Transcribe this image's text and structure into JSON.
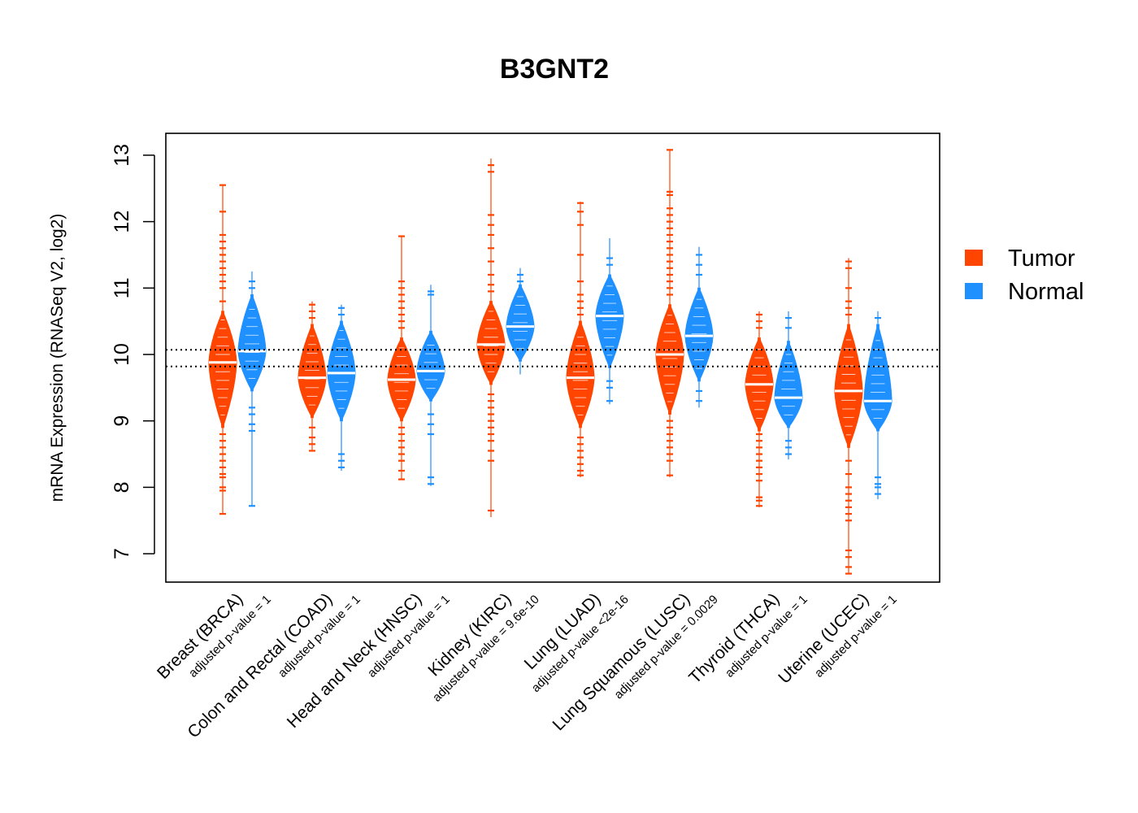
{
  "chart_data": {
    "type": "violin",
    "title": "B3GNT2",
    "ylabel": "mRNA Expression (RNASeq V2, log2)",
    "xlabel": "",
    "ylim": [
      6.6,
      13.3
    ],
    "yticks": [
      7,
      8,
      9,
      10,
      11,
      12,
      13
    ],
    "reference_lines": [
      9.82,
      10.07
    ],
    "legend": {
      "placement": "right",
      "entries": [
        {
          "label": "Tumor",
          "color": "#FF4500"
        },
        {
          "label": "Normal",
          "color": "#1E90FF"
        }
      ]
    },
    "colors": {
      "tumor": "#FF4500",
      "normal": "#1E90FF"
    },
    "categories": [
      {
        "name": "Breast (BRCA)",
        "pvalue": "adjusted p-value = 1",
        "tumor": {
          "median": 9.88,
          "min": 7.6,
          "max": 12.55,
          "core_lo": 8.9,
          "core_hi": 10.65,
          "q1": 9.55,
          "q3": 10.2,
          "outliers": [
            7.6,
            7.95,
            8.0,
            8.15,
            8.2,
            8.3,
            8.4,
            8.5,
            8.6,
            8.7,
            8.8,
            10.8,
            11.0,
            11.1,
            11.2,
            11.3,
            11.4,
            11.5,
            11.6,
            11.7,
            11.8,
            12.15,
            12.55
          ]
        },
        "normal": {
          "median": 10.05,
          "min": 7.72,
          "max": 11.25,
          "core_lo": 9.45,
          "core_hi": 10.9,
          "q1": 9.8,
          "q3": 10.4,
          "outliers": [
            7.72,
            8.85,
            8.95,
            9.1,
            9.2,
            11.0,
            11.1
          ]
        }
      },
      {
        "name": "Colon and Rectal (COAD)",
        "pvalue": "adjusted p-value = 1",
        "tumor": {
          "median": 9.65,
          "min": 8.55,
          "max": 10.8,
          "core_lo": 9.05,
          "core_hi": 10.45,
          "q1": 9.4,
          "q3": 9.95,
          "outliers": [
            8.55,
            8.65,
            8.75,
            8.9,
            10.55,
            10.65,
            10.75
          ]
        },
        "normal": {
          "median": 9.72,
          "min": 8.25,
          "max": 10.75,
          "core_lo": 9.0,
          "core_hi": 10.5,
          "q1": 9.5,
          "q3": 9.95,
          "outliers": [
            8.3,
            8.4,
            8.5,
            10.6,
            10.7
          ]
        }
      },
      {
        "name": "Head and Neck (HNSC)",
        "pvalue": "adjusted p-value = 1",
        "tumor": {
          "median": 9.62,
          "min": 8.12,
          "max": 11.78,
          "core_lo": 9.0,
          "core_hi": 10.25,
          "q1": 9.35,
          "q3": 9.95,
          "outliers": [
            8.12,
            8.25,
            8.4,
            8.5,
            8.6,
            8.7,
            8.8,
            8.9,
            10.4,
            10.5,
            10.6,
            10.7,
            10.8,
            10.9,
            11.0,
            11.1,
            11.78
          ]
        },
        "normal": {
          "median": 9.75,
          "min": 8.02,
          "max": 11.05,
          "core_lo": 9.3,
          "core_hi": 10.35,
          "q1": 9.55,
          "q3": 10.0,
          "outliers": [
            8.05,
            8.15,
            8.8,
            8.95,
            9.1,
            10.9,
            10.95
          ]
        }
      },
      {
        "name": "Kidney (KIRC)",
        "pvalue": "adjusted p-value = 9.6e-10",
        "tumor": {
          "median": 10.15,
          "min": 7.55,
          "max": 12.95,
          "core_lo": 9.55,
          "core_hi": 10.8,
          "q1": 9.9,
          "q3": 10.45,
          "outliers": [
            7.65,
            8.4,
            8.55,
            8.7,
            8.8,
            8.9,
            9.0,
            9.1,
            9.2,
            9.3,
            9.4,
            10.95,
            11.05,
            11.2,
            11.4,
            11.6,
            11.8,
            11.95,
            12.1,
            12.75,
            12.85
          ]
        },
        "normal": {
          "median": 10.42,
          "min": 9.7,
          "max": 11.3,
          "core_lo": 9.9,
          "core_hi": 11.05,
          "q1": 10.2,
          "q3": 10.6,
          "outliers": [
            11.1,
            11.2
          ]
        }
      },
      {
        "name": "Lung (LUAD)",
        "pvalue": "adjusted p-value <2e-16",
        "tumor": {
          "median": 9.65,
          "min": 8.15,
          "max": 12.3,
          "core_lo": 8.9,
          "core_hi": 10.5,
          "q1": 9.3,
          "q3": 10.0,
          "outliers": [
            8.18,
            8.25,
            8.35,
            8.45,
            8.55,
            8.65,
            8.75,
            10.6,
            10.7,
            10.8,
            10.9,
            11.1,
            11.5,
            11.95,
            12.15,
            12.28
          ]
        },
        "normal": {
          "median": 10.58,
          "min": 9.25,
          "max": 11.75,
          "core_lo": 9.8,
          "core_hi": 11.2,
          "q1": 10.3,
          "q3": 10.8,
          "outliers": [
            9.3,
            9.5,
            9.6,
            11.35,
            11.45
          ]
        }
      },
      {
        "name": "Lung Squamous (LUSC)",
        "pvalue": "adjusted p-value = 0.0029",
        "tumor": {
          "median": 10.0,
          "min": 8.15,
          "max": 13.08,
          "core_lo": 9.1,
          "core_hi": 10.75,
          "q1": 9.6,
          "q3": 10.3,
          "outliers": [
            8.18,
            8.4,
            8.5,
            8.6,
            8.7,
            8.8,
            8.9,
            9.0,
            10.9,
            11.0,
            11.1,
            11.2,
            11.3,
            11.4,
            11.5,
            11.6,
            11.7,
            11.8,
            11.9,
            12.0,
            12.1,
            12.2,
            12.4,
            12.45,
            13.08
          ]
        },
        "normal": {
          "median": 10.28,
          "min": 9.2,
          "max": 11.62,
          "core_lo": 9.6,
          "core_hi": 11.0,
          "q1": 10.0,
          "q3": 10.55,
          "outliers": [
            9.3,
            9.45,
            11.2,
            11.35,
            11.5
          ]
        }
      },
      {
        "name": "Thyroid (THCA)",
        "pvalue": "adjusted p-value = 1",
        "tumor": {
          "median": 9.55,
          "min": 7.7,
          "max": 10.65,
          "core_lo": 8.85,
          "core_hi": 10.25,
          "q1": 9.3,
          "q3": 9.85,
          "outliers": [
            7.72,
            7.8,
            7.85,
            8.1,
            8.2,
            8.3,
            8.4,
            8.5,
            8.6,
            8.7,
            8.8,
            10.4,
            10.5,
            10.6
          ]
        },
        "normal": {
          "median": 9.35,
          "min": 8.42,
          "max": 10.65,
          "core_lo": 8.9,
          "core_hi": 10.2,
          "q1": 9.15,
          "q3": 9.6,
          "outliers": [
            8.5,
            8.6,
            8.7,
            10.4,
            10.55
          ]
        }
      },
      {
        "name": "Uterine (UCEC)",
        "pvalue": "adjusted p-value = 1",
        "tumor": {
          "median": 9.45,
          "min": 6.7,
          "max": 11.45,
          "core_lo": 8.6,
          "core_hi": 10.45,
          "q1": 9.15,
          "q3": 9.75,
          "outliers": [
            6.7,
            6.8,
            6.95,
            7.05,
            7.5,
            7.6,
            7.7,
            7.8,
            7.9,
            8.0,
            8.2,
            8.4,
            10.6,
            10.7,
            10.8,
            11.0,
            11.3,
            11.4
          ]
        },
        "normal": {
          "median": 9.3,
          "min": 7.82,
          "max": 10.65,
          "core_lo": 8.85,
          "core_hi": 10.45,
          "q1": 9.1,
          "q3": 9.55,
          "outliers": [
            7.9,
            8.0,
            8.05,
            8.15,
            10.55
          ]
        }
      }
    ]
  }
}
